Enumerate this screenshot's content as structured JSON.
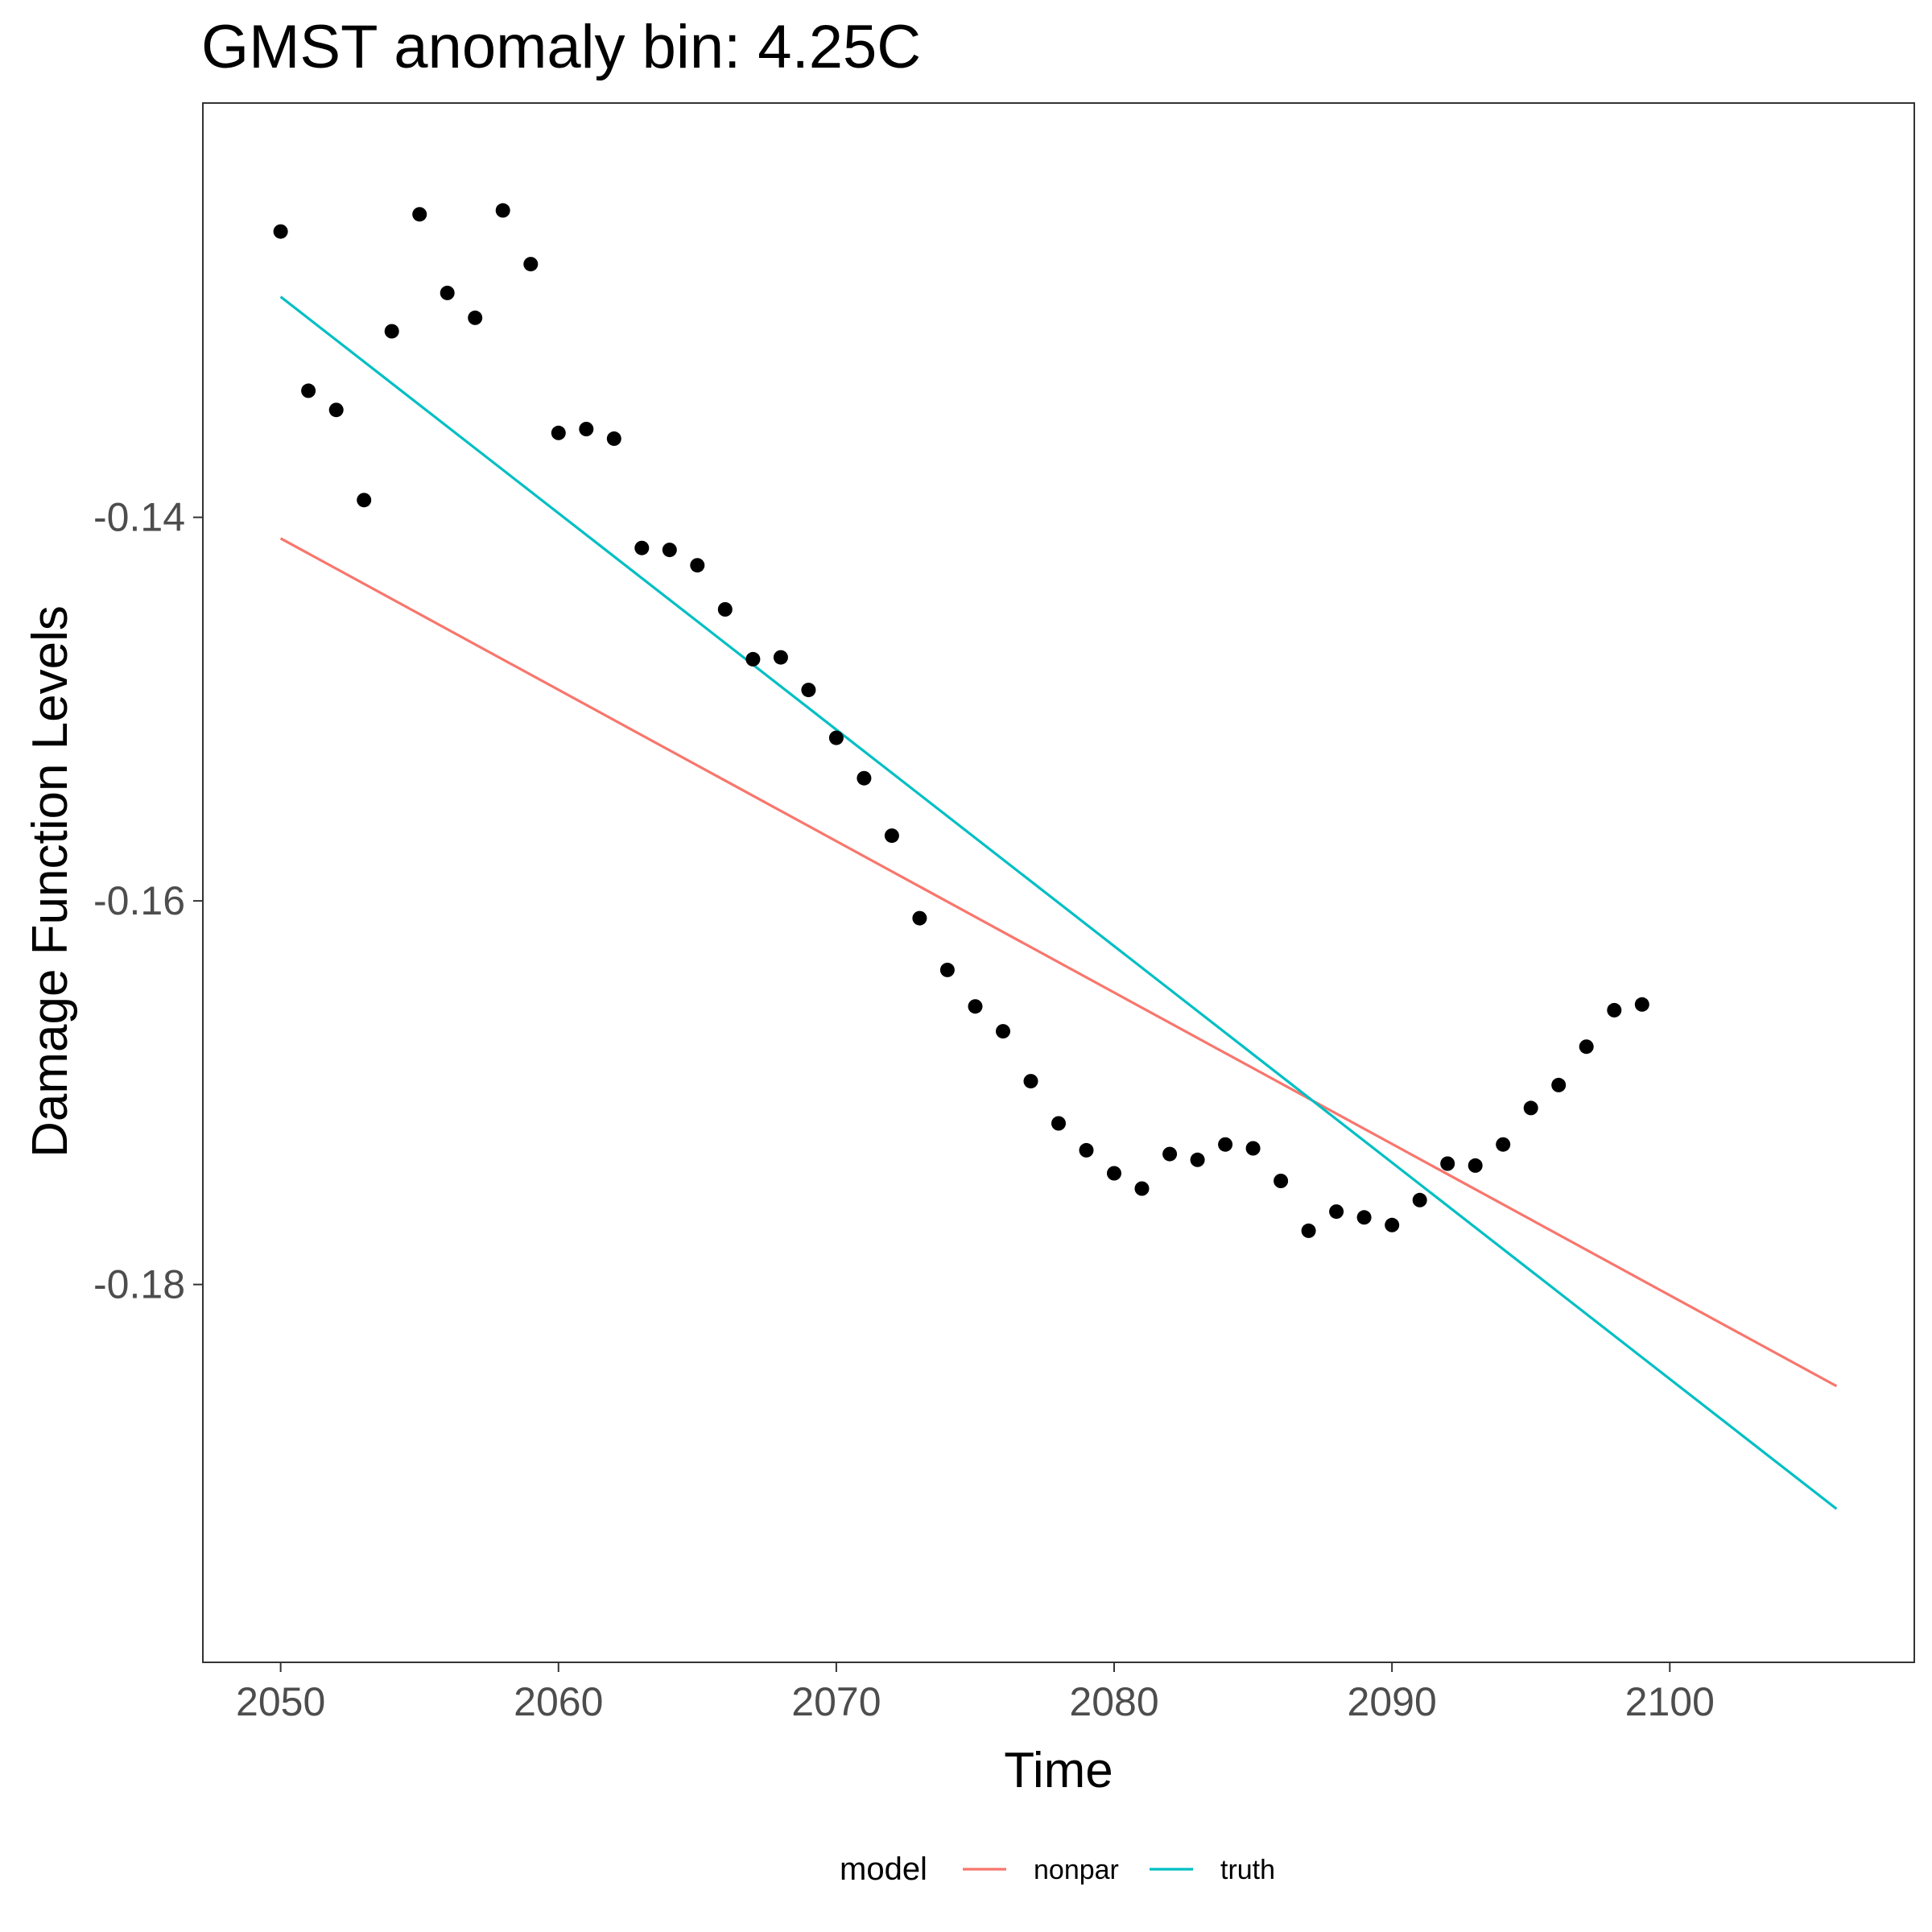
{
  "chart_data": {
    "type": "scatter",
    "title": "GMST anomaly bin: 4.25C",
    "xlabel": "Time",
    "ylabel": "Damage Function Levels",
    "xlim": [
      2047.2,
      2108.8
    ],
    "ylim": [
      -0.1997,
      -0.1184
    ],
    "x_ticks": [
      2050,
      2060,
      2070,
      2080,
      2090,
      2100
    ],
    "y_ticks": [
      -0.14,
      -0.16,
      -0.18
    ],
    "x_tick_labels": [
      "2050",
      "2060",
      "2070",
      "2080",
      "2090",
      "2100"
    ],
    "y_tick_labels": [
      "-0.14",
      "-0.16",
      "-0.18"
    ],
    "grid": false,
    "legend_position": "bottom",
    "legend_title": "model",
    "points": {
      "x": [
        2050,
        2051,
        2052,
        2053,
        2054,
        2055,
        2056,
        2057,
        2058,
        2059,
        2060,
        2061,
        2062,
        2063,
        2064,
        2065,
        2066,
        2067,
        2068,
        2069,
        2070,
        2071,
        2072,
        2073,
        2074,
        2075,
        2076,
        2077,
        2078,
        2079,
        2080,
        2081,
        2082,
        2083,
        2084,
        2085,
        2086,
        2087,
        2088,
        2089,
        2090,
        2091,
        2092,
        2093,
        2094,
        2095,
        2096,
        2097,
        2098,
        2099
      ],
      "y": [
        -0.1251,
        -0.1334,
        -0.1344,
        -0.1391,
        -0.1303,
        -0.1242,
        -0.1283,
        -0.1296,
        -0.124,
        -0.1268,
        -0.1356,
        -0.1354,
        -0.1359,
        -0.1416,
        -0.1417,
        -0.1425,
        -0.1448,
        -0.1474,
        -0.1473,
        -0.149,
        -0.1515,
        -0.1536,
        -0.1566,
        -0.1609,
        -0.1636,
        -0.1655,
        -0.1668,
        -0.1694,
        -0.1716,
        -0.173,
        -0.1742,
        -0.175,
        -0.1732,
        -0.1735,
        -0.1727,
        -0.1729,
        -0.1746,
        -0.1772,
        -0.1762,
        -0.1765,
        -0.1769,
        -0.1756,
        -0.1737,
        -0.1738,
        -0.1727,
        -0.1708,
        -0.1696,
        -0.1676,
        -0.1657,
        -0.1654
      ],
      "color": "#000000"
    },
    "series": [
      {
        "name": "nonpar",
        "color": "#F8766D",
        "x": [
          2050,
          2106
        ],
        "y": [
          -0.1411,
          -0.1853
        ]
      },
      {
        "name": "truth",
        "color": "#00BFC4",
        "x": [
          2050,
          2106
        ],
        "y": [
          -0.1285,
          -0.1917
        ]
      }
    ]
  }
}
